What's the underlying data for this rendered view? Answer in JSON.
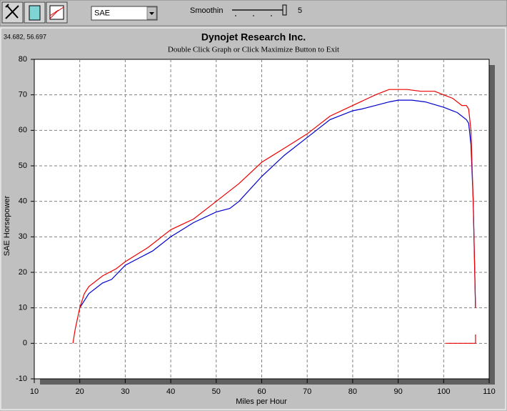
{
  "toolbar": {
    "units": "SAE",
    "smoothing_label": "Smoothin",
    "smoothing_value": "5"
  },
  "cursor_readout": "34.682, 56.697",
  "chart_data": {
    "type": "line",
    "title": "Dynojet Research Inc.",
    "subtitle": "Double Click Graph or Click Maximize Button to Exit",
    "x_label": "Miles per Hour",
    "y_label": "SAE Horsepower",
    "xlim": [
      10,
      110
    ],
    "xticks": [
      10,
      20,
      30,
      40,
      50,
      60,
      70,
      80,
      90,
      100,
      110
    ],
    "ylim": [
      -10,
      80
    ],
    "yticks": [
      -10,
      0,
      10,
      20,
      30,
      40,
      50,
      60,
      70,
      80
    ],
    "grid": true,
    "series": [
      {
        "color": "#0000cc",
        "x": [
          20,
          21,
          22,
          25,
          27,
          30,
          33,
          36,
          40,
          45,
          50,
          53,
          55,
          60,
          65,
          70,
          75,
          80,
          82,
          85,
          88,
          90,
          93,
          96,
          100,
          103,
          105,
          105.5,
          106,
          106.5,
          107
        ],
        "values": [
          10,
          12,
          14,
          17,
          18,
          22,
          24,
          26,
          30,
          34,
          37,
          38,
          40,
          47,
          53,
          58,
          63,
          65.5,
          66,
          67,
          68,
          68.5,
          68.5,
          68,
          66.5,
          65,
          63,
          62,
          56,
          40,
          10
        ]
      },
      {
        "color": "#ee0000",
        "x": [
          18.5,
          19,
          20,
          21,
          22,
          25,
          28,
          30,
          35,
          40,
          45,
          50,
          55,
          60,
          65,
          70,
          75,
          80,
          85,
          88,
          92,
          95,
          98,
          100,
          102,
          104,
          105,
          105.5,
          106,
          106.5,
          107,
          null,
          100.5,
          107,
          107
        ],
        "values": [
          0,
          4,
          10,
          14,
          16,
          19,
          21,
          23,
          27,
          32,
          35,
          40,
          45,
          51,
          55,
          59,
          64,
          67,
          70,
          71.5,
          71.5,
          71,
          71,
          70,
          69,
          67,
          67,
          66,
          60,
          40,
          10,
          null,
          0,
          0,
          2.5
        ]
      }
    ]
  }
}
